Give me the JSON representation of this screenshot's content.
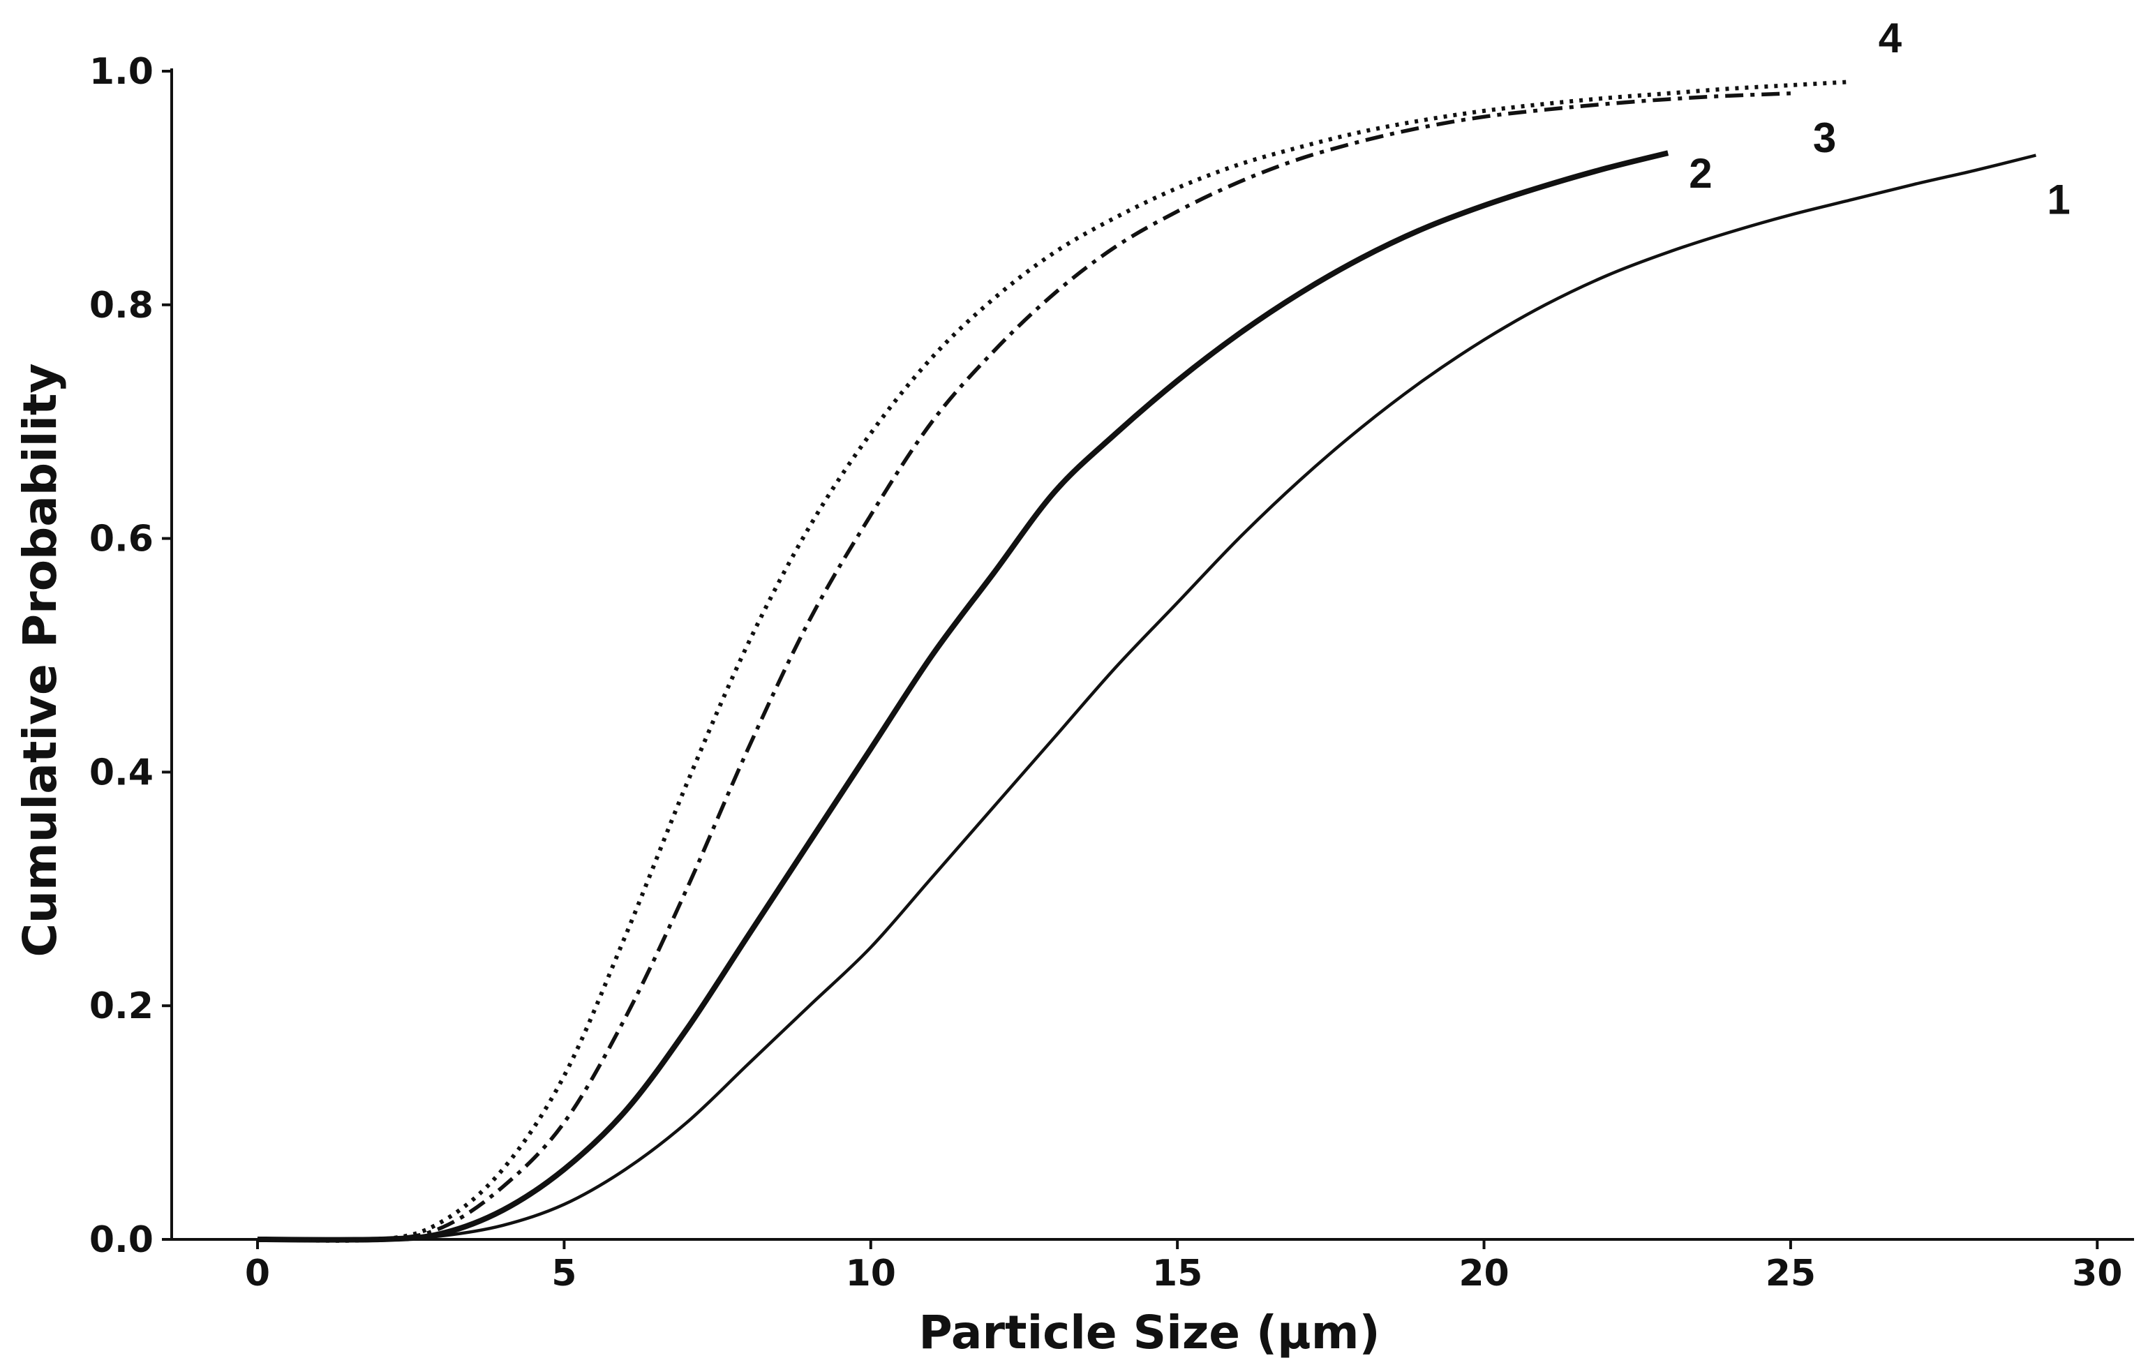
{
  "chart_data": {
    "type": "line",
    "xlabel": "Particle Size (μm)",
    "ylabel": "Cumulative Probability",
    "xlim": [
      -1.4,
      30.6
    ],
    "ylim": [
      0,
      1.0
    ],
    "xticks": [
      0,
      5,
      10,
      15,
      20,
      25,
      30
    ],
    "yticks": [
      0.0,
      0.2,
      0.4,
      0.6,
      0.8,
      1.0
    ],
    "xtick_labels": [
      "0",
      "5",
      "10",
      "15",
      "20",
      "25",
      "30"
    ],
    "ytick_labels": [
      "0.0",
      "0.2",
      "0.4",
      "0.6",
      "0.8",
      "1.0"
    ],
    "grid": false,
    "legend": "none",
    "series": [
      {
        "label": "1",
        "style": "solid-thin",
        "x": [
          0,
          2,
          3,
          4,
          5,
          6,
          7,
          8,
          9,
          10,
          11,
          12,
          13,
          14,
          15,
          16,
          17,
          18,
          19,
          20,
          21,
          22,
          23,
          24,
          25,
          26,
          27,
          28,
          29
        ],
        "y": [
          0.0,
          0.0,
          0.003,
          0.012,
          0.03,
          0.06,
          0.1,
          0.15,
          0.2,
          0.25,
          0.31,
          0.37,
          0.43,
          0.49,
          0.545,
          0.6,
          0.65,
          0.695,
          0.735,
          0.77,
          0.8,
          0.825,
          0.845,
          0.862,
          0.877,
          0.89,
          0.903,
          0.915,
          0.928
        ]
      },
      {
        "label": "2",
        "style": "solid-thick",
        "x": [
          0,
          2,
          3,
          4,
          5,
          6,
          7,
          8,
          9,
          10,
          11,
          12,
          13,
          14,
          15,
          16,
          17,
          18,
          19,
          20,
          21,
          22,
          23
        ],
        "y": [
          0.0,
          0.0,
          0.005,
          0.025,
          0.06,
          0.11,
          0.18,
          0.26,
          0.34,
          0.42,
          0.5,
          0.57,
          0.64,
          0.69,
          0.735,
          0.775,
          0.81,
          0.84,
          0.865,
          0.885,
          0.902,
          0.917,
          0.93
        ]
      },
      {
        "label": "3",
        "style": "dash-dot",
        "x": [
          0,
          2,
          3,
          4,
          5,
          6,
          7,
          8,
          9,
          10,
          11,
          12,
          13,
          14,
          15,
          16,
          17,
          18,
          19,
          20,
          21,
          22,
          23,
          24,
          25
        ],
        "y": [
          0.0,
          0.0,
          0.01,
          0.045,
          0.1,
          0.19,
          0.3,
          0.42,
          0.53,
          0.62,
          0.7,
          0.76,
          0.81,
          0.85,
          0.88,
          0.905,
          0.925,
          0.94,
          0.952,
          0.961,
          0.967,
          0.972,
          0.976,
          0.979,
          0.981
        ]
      },
      {
        "label": "4",
        "style": "dotted",
        "x": [
          0,
          2,
          3,
          4,
          5,
          6,
          7,
          8,
          9,
          10,
          11,
          12,
          13,
          14,
          15,
          16,
          17,
          18,
          19,
          20,
          21,
          22,
          23,
          24,
          25,
          26
        ],
        "y": [
          0.0,
          0.0,
          0.015,
          0.06,
          0.14,
          0.26,
          0.39,
          0.51,
          0.61,
          0.69,
          0.755,
          0.805,
          0.845,
          0.875,
          0.9,
          0.92,
          0.935,
          0.948,
          0.958,
          0.966,
          0.972,
          0.977,
          0.981,
          0.985,
          0.988,
          0.991
        ]
      }
    ]
  }
}
